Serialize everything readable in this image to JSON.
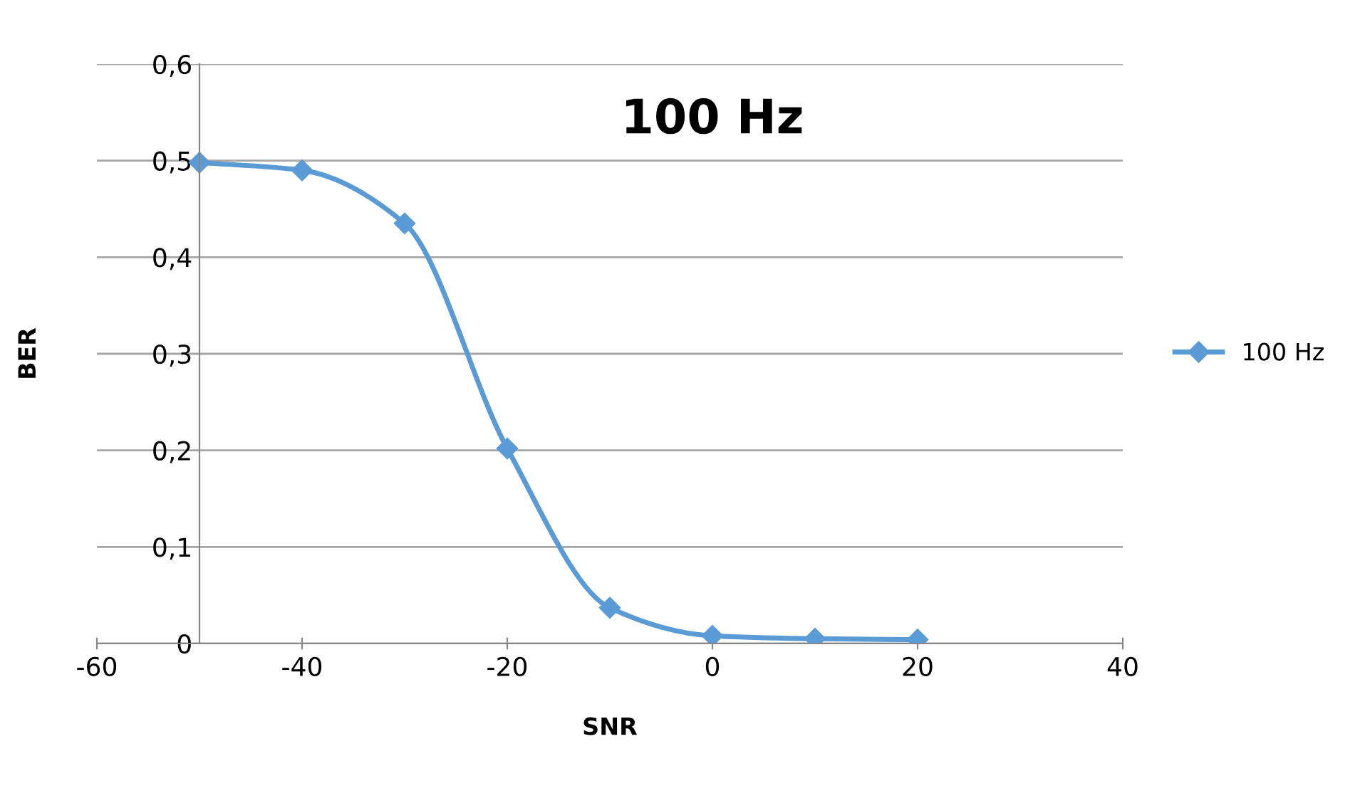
{
  "chart_data": {
    "type": "line",
    "title": "100 Hz",
    "xlabel": "SNR",
    "ylabel": "BER",
    "x": [
      -50,
      -40,
      -30,
      -20,
      -10,
      0,
      10,
      20
    ],
    "series": [
      {
        "name": "100 Hz",
        "color": "#5b9bd5",
        "values": [
          0.498,
          0.49,
          0.435,
          0.202,
          0.037,
          0.008,
          0.005,
          0.004
        ]
      }
    ],
    "xlim": [
      -60,
      40
    ],
    "xticks": [
      -60,
      -40,
      -20,
      0,
      20,
      40
    ],
    "ylim": [
      0,
      0.6
    ],
    "yticks": [
      0,
      {
        "value": 0.1,
        "label": "0,1"
      },
      {
        "value": 0.2,
        "label": "0,2"
      },
      {
        "value": 0.3,
        "label": "0,3"
      },
      {
        "value": 0.4,
        "label": "0,4"
      },
      {
        "value": 0.5,
        "label": "0,5"
      },
      {
        "value": 0.6,
        "label": "0,6"
      }
    ],
    "grid": "y",
    "legend": "right",
    "marker": "diamond",
    "line_style": "solid"
  }
}
